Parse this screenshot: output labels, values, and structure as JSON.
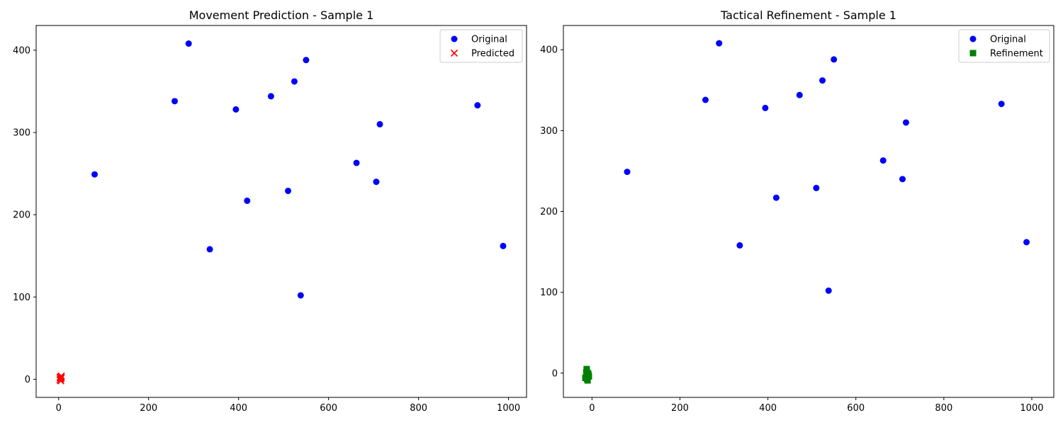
{
  "chart_data": [
    {
      "type": "scatter",
      "title": "Movement Prediction - Sample 1",
      "xlabel": "",
      "ylabel": "",
      "xlim": [
        -50,
        1040
      ],
      "ylim": [
        -22,
        430
      ],
      "xticks": [
        0,
        200,
        400,
        600,
        800,
        1000
      ],
      "yticks": [
        0,
        100,
        200,
        300,
        400
      ],
      "grid": false,
      "legend_position": "top-right",
      "series": [
        {
          "name": "Original",
          "marker": "circle",
          "color": "#0000ff",
          "points": [
            [
              80,
              249
            ],
            [
              258,
              338
            ],
            [
              289,
              408
            ],
            [
              336,
              158
            ],
            [
              394,
              328
            ],
            [
              419,
              217
            ],
            [
              472,
              344
            ],
            [
              510,
              229
            ],
            [
              524,
              362
            ],
            [
              538,
              102
            ],
            [
              550,
              388
            ],
            [
              662,
              263
            ],
            [
              706,
              240
            ],
            [
              714,
              310
            ],
            [
              931,
              333
            ],
            [
              988,
              162
            ]
          ]
        },
        {
          "name": "Predicted",
          "marker": "x",
          "color": "#ff0000",
          "points": [
            [
              4,
              3
            ],
            [
              5,
              1
            ],
            [
              3,
              -1
            ],
            [
              6,
              2
            ],
            [
              4,
              0
            ],
            [
              5,
              -2
            ],
            [
              3,
              2
            ],
            [
              6,
              4
            ]
          ]
        }
      ]
    },
    {
      "type": "scatter",
      "title": "Tactical Refinement - Sample 1",
      "xlabel": "",
      "ylabel": "",
      "xlim": [
        -65,
        1050
      ],
      "ylim": [
        -30,
        430
      ],
      "xticks": [
        0,
        200,
        400,
        600,
        800,
        1000
      ],
      "yticks": [
        0,
        100,
        200,
        300,
        400
      ],
      "grid": false,
      "legend_position": "top-right",
      "series": [
        {
          "name": "Original",
          "marker": "circle",
          "color": "#0000ff",
          "points": [
            [
              80,
              249
            ],
            [
              258,
              338
            ],
            [
              289,
              408
            ],
            [
              336,
              158
            ],
            [
              394,
              328
            ],
            [
              419,
              217
            ],
            [
              472,
              344
            ],
            [
              510,
              229
            ],
            [
              524,
              362
            ],
            [
              538,
              102
            ],
            [
              550,
              388
            ],
            [
              662,
              263
            ],
            [
              706,
              240
            ],
            [
              714,
              310
            ],
            [
              931,
              333
            ],
            [
              988,
              162
            ]
          ]
        },
        {
          "name": "Refinement",
          "marker": "square",
          "color": "#008000",
          "points": [
            [
              -12,
              5
            ],
            [
              -8,
              -2
            ],
            [
              -15,
              -6
            ],
            [
              -10,
              -9
            ],
            [
              -7,
              -4
            ],
            [
              -13,
              1
            ],
            [
              -9,
              0
            ],
            [
              -11,
              -7
            ]
          ]
        }
      ]
    }
  ]
}
